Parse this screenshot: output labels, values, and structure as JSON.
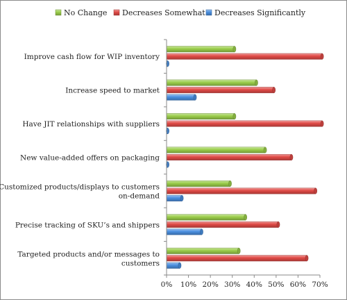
{
  "chart_data": {
    "type": "bar",
    "orientation": "horizontal",
    "categories": [
      "Improve cash flow for WIP inventory",
      "Increase speed to market",
      "Have JIT relationships with suppliers",
      "New value-added offers on packaging",
      "Customized products/displays to customers on-demand",
      "Precise tracking of SKU’s and shippers",
      "Targeted products and/or messages to customers"
    ],
    "category_lines": [
      [
        "Improve cash flow for WIP inventory"
      ],
      [
        "Increase speed to market"
      ],
      [
        "Have JIT relationships with suppliers"
      ],
      [
        "New value-added offers on packaging"
      ],
      [
        "Customized products/displays to customers",
        "on-demand"
      ],
      [
        "Precise tracking of SKU’s and shippers"
      ],
      [
        "Targeted products and/or messages to",
        "customers"
      ]
    ],
    "series": [
      {
        "name": "No Change",
        "color": "#9acd4a",
        "values": [
          31,
          41,
          31,
          45,
          29,
          36,
          33
        ]
      },
      {
        "name": "Decreases Somewhat",
        "color": "#e04a46",
        "values": [
          71,
          49,
          71,
          57,
          68,
          51,
          64
        ]
      },
      {
        "name": "Decreases Significantly",
        "color": "#4a8fe0",
        "values": [
          0.5,
          13,
          0.5,
          0.5,
          7,
          16,
          6
        ]
      }
    ],
    "xlim": [
      0,
      70
    ],
    "x_ticks": [
      "0%",
      "10%",
      "20%",
      "30%",
      "40%",
      "50%",
      "60%",
      "70%"
    ],
    "xlabel": "",
    "ylabel": "",
    "title": "",
    "grid": false,
    "legend_position": "top"
  }
}
